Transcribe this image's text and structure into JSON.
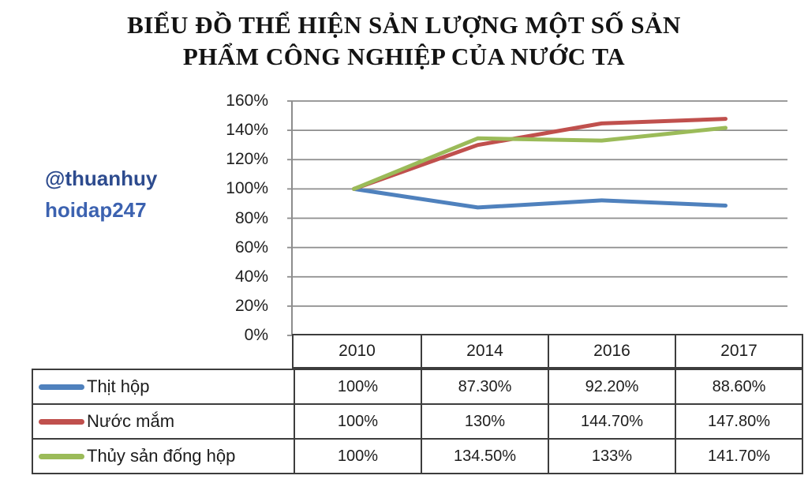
{
  "title": {
    "line1": "BIỂU ĐỒ THỂ HIỆN SẢN LƯỢNG MỘT SỐ SẢN",
    "line2": "PHẨM CÔNG NGHIỆP CỦA NƯỚC TA"
  },
  "watermark": {
    "line1": "@thuanhuy",
    "line2": "hoidap247"
  },
  "chart_data": {
    "type": "line",
    "categories": [
      "2010",
      "2014",
      "2016",
      "2017"
    ],
    "series": [
      {
        "name": "Thịt hộp",
        "color": "#4F81BD",
        "values": [
          100,
          87.3,
          92.2,
          88.6
        ]
      },
      {
        "name": "Nước mắm",
        "color": "#C0504D",
        "values": [
          100,
          130,
          144.7,
          147.8
        ]
      },
      {
        "name": "Thủy sản đống hộp",
        "color": "#9BBB59",
        "values": [
          100,
          134.5,
          133,
          141.7
        ]
      }
    ],
    "ylim": [
      0,
      160
    ],
    "ytick_step": 20,
    "yticks": [
      "160%",
      "140%",
      "120%",
      "100%",
      "80%",
      "60%",
      "40%",
      "20%",
      "0%"
    ],
    "grid": true,
    "gridline_color": "#8d8d8d",
    "legend_position": "table-left"
  },
  "table": {
    "columns": [
      "2010",
      "2014",
      "2016",
      "2017"
    ],
    "rows": [
      {
        "label": "Thịt hộp",
        "values": [
          "100%",
          "87.30%",
          "92.20%",
          "88.60%"
        ]
      },
      {
        "label": "Nước mắm",
        "values": [
          "100%",
          "130%",
          "144.70%",
          "147.80%"
        ]
      },
      {
        "label": "Thủy sản đống hộp",
        "values": [
          "100%",
          "134.50%",
          "133%",
          "141.70%"
        ]
      }
    ]
  }
}
